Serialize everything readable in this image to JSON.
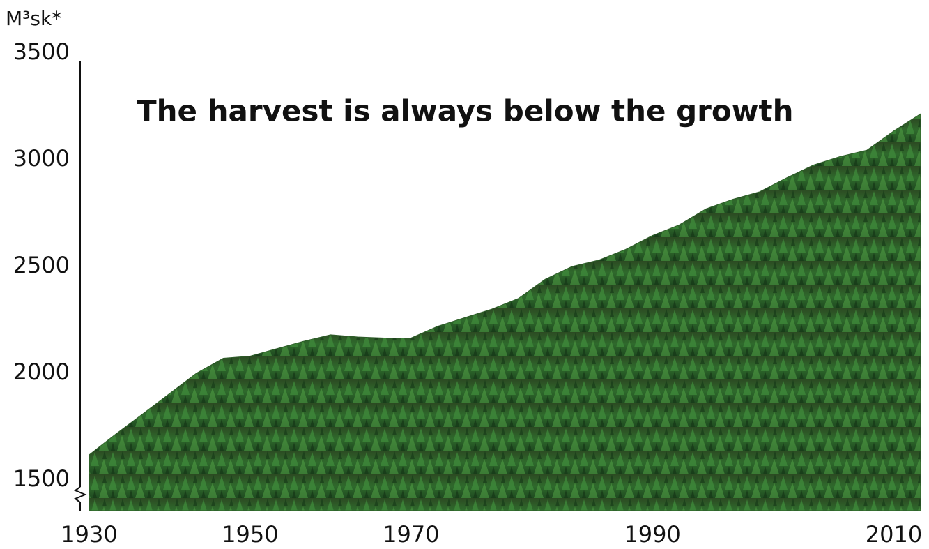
{
  "chart_data": {
    "type": "area",
    "y_label": "M³sk*",
    "annotation": "The harvest is always below the growth",
    "categories": [
      "1930",
      null,
      null,
      null,
      null,
      null,
      "1950",
      null,
      null,
      null,
      null,
      null,
      "1970",
      null,
      null,
      null,
      null,
      null,
      null,
      null,
      null,
      "1990",
      null,
      null,
      null,
      null,
      null,
      null,
      null,
      null,
      "2010",
      null
    ],
    "values": [
      1618,
      1716,
      1810,
      1905,
      2000,
      2070,
      2080,
      2115,
      2150,
      2180,
      2170,
      2165,
      2165,
      2220,
      2260,
      2300,
      2350,
      2440,
      2500,
      2530,
      2580,
      2645,
      2695,
      2770,
      2815,
      2850,
      2915,
      2975,
      3015,
      3045,
      3135,
      3215
    ],
    "ylim": [
      1356,
      3500
    ],
    "yticks": [
      1500,
      2000,
      2500,
      3000,
      3500
    ],
    "color": "#2f5e2a"
  }
}
